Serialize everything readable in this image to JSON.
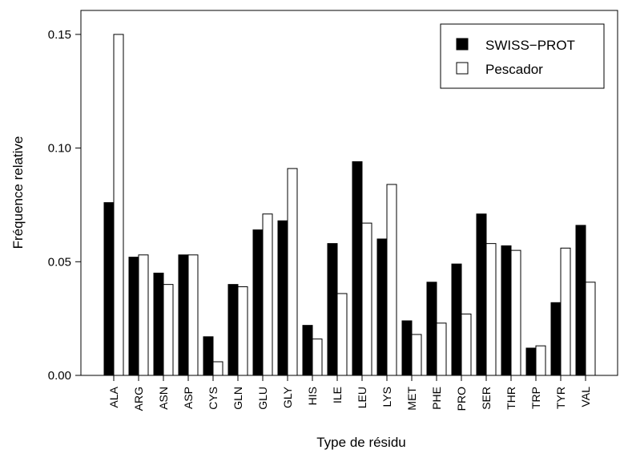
{
  "chart_data": {
    "type": "bar",
    "title": "",
    "xlabel": "Type de résidu",
    "ylabel": "Fréquence relative",
    "ylim": [
      0,
      0.16
    ],
    "yticks": [
      "0.00",
      "0.05",
      "0.10",
      "0.15"
    ],
    "ytick_values": [
      0,
      0.05,
      0.1,
      0.15
    ],
    "grid": false,
    "legend_position": "top-right",
    "categories": [
      "ALA",
      "ARG",
      "ASN",
      "ASP",
      "CYS",
      "GLN",
      "GLU",
      "GLY",
      "HIS",
      "ILE",
      "LEU",
      "LYS",
      "MET",
      "PHE",
      "PRO",
      "SER",
      "THR",
      "TRP",
      "TYR",
      "VAL"
    ],
    "series": [
      {
        "name": "SWISS−PROT",
        "color": "#000000",
        "values": [
          0.076,
          0.052,
          0.045,
          0.053,
          0.017,
          0.04,
          0.064,
          0.068,
          0.022,
          0.058,
          0.094,
          0.06,
          0.024,
          0.041,
          0.049,
          0.071,
          0.057,
          0.012,
          0.032,
          0.066
        ]
      },
      {
        "name": "Pescador",
        "color": "#ffffff",
        "values": [
          0.15,
          0.053,
          0.04,
          0.053,
          0.006,
          0.039,
          0.071,
          0.091,
          0.016,
          0.036,
          0.067,
          0.084,
          0.018,
          0.023,
          0.027,
          0.058,
          0.055,
          0.013,
          0.056,
          0.041
        ]
      }
    ]
  }
}
